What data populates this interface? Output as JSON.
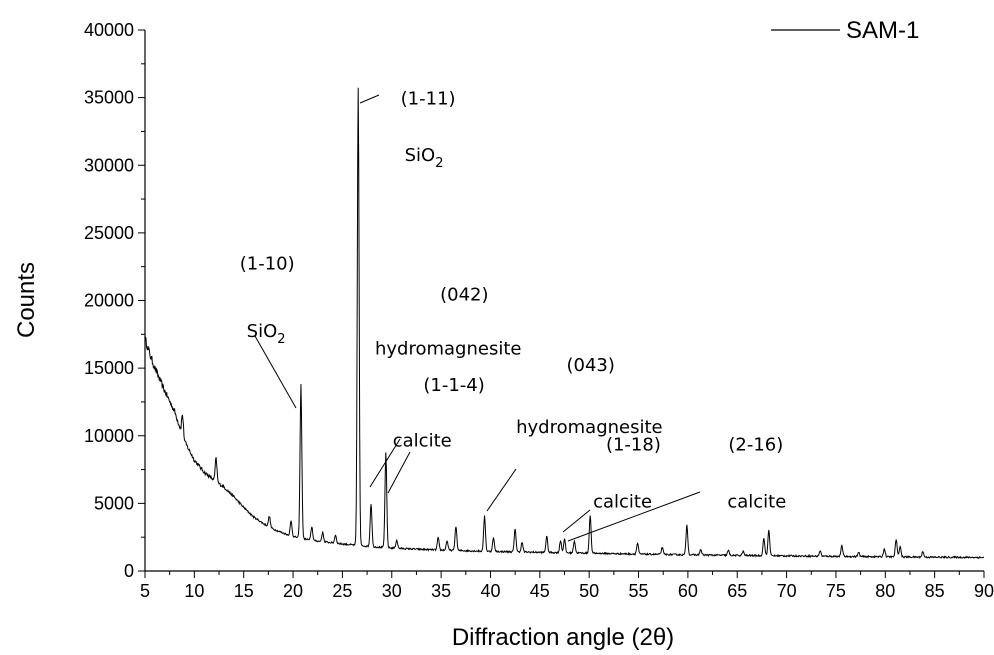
{
  "chart_data": {
    "type": "line",
    "xlabel": "Diffraction angle (2θ)",
    "ylabel": "Counts",
    "xlim": [
      5,
      90
    ],
    "ylim": [
      0,
      40000
    ],
    "x_ticks": [
      5,
      10,
      15,
      20,
      25,
      30,
      35,
      40,
      45,
      50,
      55,
      60,
      65,
      70,
      75,
      80,
      85,
      90
    ],
    "x_tick_labels": [
      "5",
      "10",
      "15",
      "20",
      "25",
      "30",
      "35",
      "40",
      "45",
      "50",
      "55",
      "60",
      "65",
      "70",
      "75",
      "80",
      "85",
      "90"
    ],
    "y_ticks": [
      0,
      5000,
      10000,
      15000,
      20000,
      25000,
      30000,
      35000,
      40000
    ],
    "y_tick_labels": [
      "0",
      "5000",
      "10000",
      "15000",
      "20000",
      "25000",
      "30000",
      "35000",
      "40000"
    ],
    "grid": false,
    "legend": {
      "position": "top-right",
      "entries": [
        "SAM-1"
      ]
    },
    "series": [
      {
        "name": "SAM-1",
        "color": "#000000",
        "baseline": [
          [
            5,
            17200
          ],
          [
            5.5,
            16000
          ],
          [
            6,
            15000
          ],
          [
            7,
            13300
          ],
          [
            8,
            11800
          ],
          [
            9,
            9600
          ],
          [
            10,
            8200
          ],
          [
            11,
            7300
          ],
          [
            12,
            6700
          ],
          [
            13,
            6200
          ],
          [
            14,
            5500
          ],
          [
            15,
            4700
          ],
          [
            16,
            4000
          ],
          [
            17,
            3500
          ],
          [
            18,
            3100
          ],
          [
            19,
            2800
          ],
          [
            20,
            2550
          ],
          [
            22,
            2250
          ],
          [
            25,
            2000
          ],
          [
            28,
            1800
          ],
          [
            30,
            1700
          ],
          [
            33,
            1600
          ],
          [
            35,
            1550
          ],
          [
            40,
            1450
          ],
          [
            45,
            1380
          ],
          [
            50,
            1320
          ],
          [
            55,
            1250
          ],
          [
            60,
            1200
          ],
          [
            65,
            1150
          ],
          [
            70,
            1120
          ],
          [
            75,
            1080
          ],
          [
            80,
            1050
          ],
          [
            85,
            1020
          ],
          [
            90,
            1000
          ]
        ],
        "peaks": [
          [
            8.8,
            1500
          ],
          [
            12.2,
            1700
          ],
          [
            17.6,
            800
          ],
          [
            19.8,
            1100
          ],
          [
            20.8,
            11200
          ],
          [
            21.9,
            1000
          ],
          [
            23.0,
            700
          ],
          [
            24.3,
            600
          ],
          [
            26.6,
            33800
          ],
          [
            27.9,
            3200
          ],
          [
            29.4,
            6900
          ],
          [
            30.5,
            600
          ],
          [
            34.7,
            900
          ],
          [
            35.6,
            700
          ],
          [
            36.5,
            1800
          ],
          [
            39.4,
            2600
          ],
          [
            40.3,
            1000
          ],
          [
            42.5,
            1700
          ],
          [
            43.2,
            700
          ],
          [
            45.7,
            1200
          ],
          [
            47.1,
            900
          ],
          [
            47.5,
            1000
          ],
          [
            48.5,
            900
          ],
          [
            50.1,
            2800
          ],
          [
            54.9,
            800
          ],
          [
            57.4,
            500
          ],
          [
            59.9,
            2200
          ],
          [
            61.3,
            400
          ],
          [
            64.1,
            350
          ],
          [
            65.6,
            300
          ],
          [
            67.7,
            1300
          ],
          [
            68.2,
            1900
          ],
          [
            73.4,
            400
          ],
          [
            75.6,
            800
          ],
          [
            77.3,
            300
          ],
          [
            79.9,
            600
          ],
          [
            81.1,
            1300
          ],
          [
            81.5,
            800
          ],
          [
            83.8,
            400
          ]
        ]
      }
    ],
    "annotations": [
      {
        "text": "(1-11)",
        "x": 30.9,
        "y": 34500
      },
      {
        "text": "SiO",
        "sub": "2",
        "x": 31.3,
        "y": 30300
      },
      {
        "text": "(1-10)",
        "x": 14.6,
        "y": 22300
      },
      {
        "text": "SiO",
        "sub": "2",
        "x": 15.3,
        "y": 17300
      },
      {
        "text": "(042)",
        "x": 34.9,
        "y": 20000
      },
      {
        "text": "hydromagnesite",
        "x": 28.3,
        "y": 16000
      },
      {
        "text": "(1-1-4)",
        "x": 33.2,
        "y": 13300
      },
      {
        "text": "(043)",
        "x": 47.7,
        "y": 14800
      },
      {
        "text": "calcite",
        "x": 30.1,
        "y": 9200
      },
      {
        "text": "hydromagnesite",
        "x": 42.6,
        "y": 10200
      },
      {
        "text": "(1-18)",
        "x": 51.7,
        "y": 8900
      },
      {
        "text": "(2-16)",
        "x": 64.1,
        "y": 8900
      },
      {
        "text": "calcite",
        "x": 50.4,
        "y": 4700
      },
      {
        "text": "calcite",
        "x": 64.0,
        "y": 4700
      }
    ]
  }
}
